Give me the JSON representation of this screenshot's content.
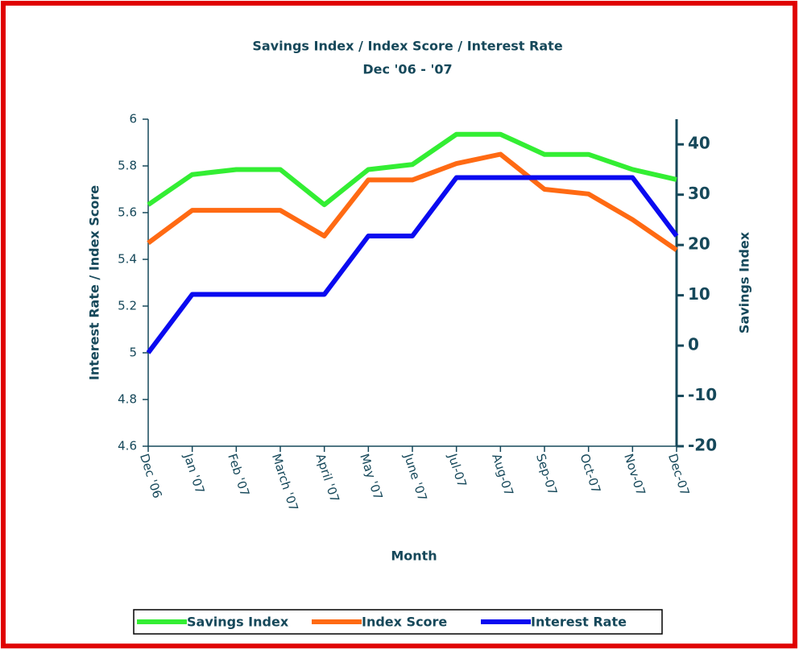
{
  "chart_data": {
    "type": "line",
    "title": "Savings Index / Index Score / Interest Rate",
    "subtitle": "Dec '06 - '07",
    "xlabel": "Month",
    "ylabel": "Interest Rate / Index Score",
    "y2label": "Savings Index",
    "categories": [
      "Dec '06",
      "Jan '07",
      "Feb '07",
      "March '07",
      "April '07",
      "May '07",
      "June '07",
      "Jul-07",
      "Aug-07",
      "Sep-07",
      "Oct-07",
      "Nov-07",
      "Dec-07"
    ],
    "series": [
      {
        "name": "Savings Index",
        "color": "#33ee33",
        "axis": "y2",
        "values": [
          28,
          34,
          35,
          35,
          28,
          35,
          36,
          42,
          42,
          38,
          38,
          35,
          33
        ]
      },
      {
        "name": "Index Score",
        "color": "#ff6a13",
        "values": [
          5.47,
          5.61,
          5.61,
          5.61,
          5.5,
          5.74,
          5.74,
          5.81,
          5.85,
          5.7,
          5.68,
          5.57,
          5.44
        ]
      },
      {
        "name": "Interest Rate",
        "color": "#0a0af0",
        "values": [
          5.0,
          5.25,
          5.25,
          5.25,
          5.25,
          5.5,
          5.5,
          5.75,
          5.75,
          5.75,
          5.75,
          5.75,
          5.5
        ]
      }
    ],
    "ylim": [
      4.6,
      6
    ],
    "yticks": [
      4.6,
      4.8,
      5,
      5.2,
      5.4,
      5.6,
      5.8,
      6
    ],
    "y2lim": [
      -20,
      45
    ],
    "y2ticks": [
      -20,
      -10,
      0,
      10,
      20,
      30,
      40
    ]
  }
}
